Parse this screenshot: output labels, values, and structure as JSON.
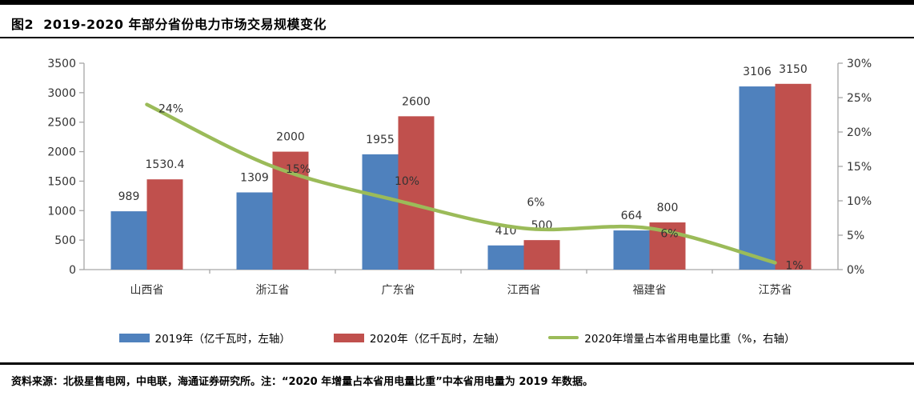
{
  "header": {
    "title": "图2  2019-2020 年部分省份电力市场交易规模变化"
  },
  "footer": {
    "text": "资料来源：北极星售电网，中电联，海通证券研究所。注：“2020 年增量占本省用电量比重”中本省用电量为 2019 年数据。"
  },
  "colors": {
    "bar_2019": "#4F81BD",
    "bar_2020": "#C0504D",
    "trend_line": "#9BBB59",
    "axis": "#A6A6A6",
    "text": "#000000",
    "separator": "#000000"
  },
  "chart_data": {
    "type": "bar",
    "title": "图2  2019-2020 年部分省份电力市场交易规模变化",
    "xlabel": "",
    "ylabel": "",
    "grid": false,
    "legend_position": "bottom",
    "categories": [
      "山西省",
      "浙江省",
      "广东省",
      "江西省",
      "福建省",
      "江苏省"
    ],
    "series": [
      {
        "name": "2019年（亿千瓦时，左轴）",
        "type": "bar",
        "axis": "left",
        "color": "#4F81BD",
        "values": [
          989,
          1309,
          1955,
          410,
          664,
          3106
        ],
        "labels": [
          "989",
          "1309",
          "1955",
          "410",
          "664",
          "3106"
        ]
      },
      {
        "name": "2020年（亿千瓦时，左轴）",
        "type": "bar",
        "axis": "left",
        "color": "#C0504D",
        "values": [
          1530.4,
          2000,
          2600,
          500,
          800,
          3150
        ],
        "labels": [
          "1530.4",
          "2000",
          "2600",
          "500",
          "800",
          "3150"
        ]
      },
      {
        "name": "2020年增量占本省用电量比重（%，右轴）",
        "type": "line",
        "axis": "right",
        "color": "#9BBB59",
        "values": [
          24,
          15,
          10,
          6,
          6,
          1
        ],
        "labels": [
          "24%",
          "15%",
          "10%",
          "6%",
          "6%",
          "1%"
        ]
      }
    ],
    "left_axis": {
      "min": 0,
      "max": 3500,
      "step": 500,
      "ticks": [
        "0",
        "500",
        "1000",
        "1500",
        "2000",
        "2500",
        "3000",
        "3500"
      ]
    },
    "right_axis": {
      "min": 0,
      "max": 30,
      "step": 5,
      "ticks": [
        "0%",
        "5%",
        "10%",
        "15%",
        "20%",
        "25%",
        "30%"
      ]
    }
  }
}
